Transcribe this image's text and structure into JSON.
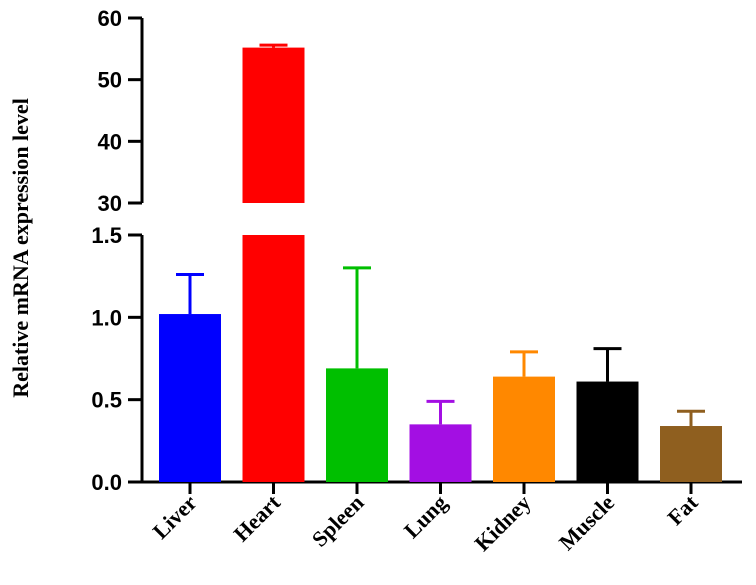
{
  "chart_data": {
    "type": "bar",
    "ylabel": "Relative mRNA expression level",
    "axis_break": {
      "lower_range": [
        0,
        1.5
      ],
      "upper_range": [
        30,
        60
      ]
    },
    "lower_ticks": [
      "0.0",
      "0.5",
      "1.0",
      "1.5"
    ],
    "upper_ticks": [
      "30",
      "40",
      "50",
      "60"
    ],
    "categories": [
      "Liver",
      "Heart",
      "Spleen",
      "Lung",
      "Kidney",
      "Muscle",
      "Fat"
    ],
    "values": [
      1.02,
      55.2,
      0.69,
      0.35,
      0.64,
      0.61,
      0.34
    ],
    "error_upper": [
      1.26,
      55.6,
      1.3,
      0.49,
      0.79,
      0.81,
      0.43
    ],
    "colors": [
      "#0000ff",
      "#ff0000",
      "#00bf00",
      "#a30fe3",
      "#ff8800",
      "#000000",
      "#8f5f1f"
    ],
    "grid": false,
    "legend": "none"
  }
}
